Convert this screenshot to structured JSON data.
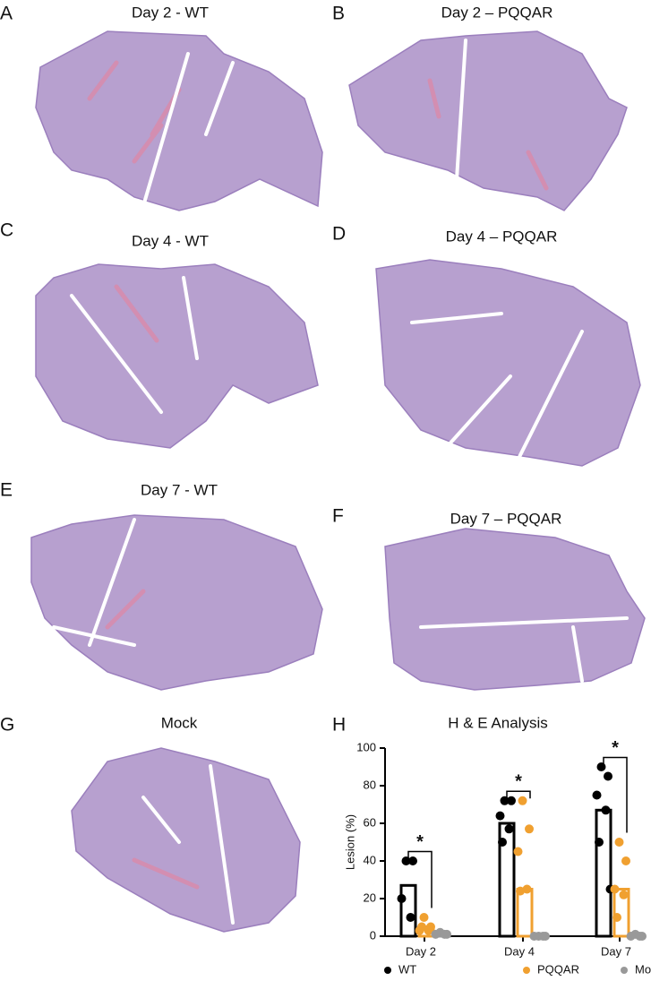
{
  "panels": [
    {
      "letter": "A",
      "title": "Day 2 - WT"
    },
    {
      "letter": "B",
      "title": "Day 2 – PQQAR"
    },
    {
      "letter": "C",
      "title": "Day 4 - WT"
    },
    {
      "letter": "D",
      "title": "Day 4 – PQQAR"
    },
    {
      "letter": "E",
      "title": "Day 7 - WT"
    },
    {
      "letter": "F",
      "title": "Day 7 – PQQAR"
    },
    {
      "letter": "G",
      "title": "Mock"
    },
    {
      "letter": "H"
    }
  ],
  "chart_data": {
    "type": "bar",
    "title": "H & E Analysis",
    "y_label": "Lesion (%)",
    "categories": [
      "Day 2",
      "Day 4",
      "Day 7"
    ],
    "series": [
      {
        "name": "WT",
        "color": "#000000",
        "values": [
          27,
          60,
          67
        ],
        "points": [
          [
            40,
            40,
            20,
            10
          ],
          [
            72,
            72,
            64,
            57,
            50
          ],
          [
            90,
            85,
            75,
            67,
            50,
            25
          ]
        ]
      },
      {
        "name": "PQQAR",
        "color": "#f0a030",
        "values": [
          5,
          25,
          25
        ],
        "points": [
          [
            10,
            5,
            3,
            3,
            5
          ],
          [
            72,
            57,
            45,
            25,
            24
          ],
          [
            50,
            40,
            25,
            22,
            10
          ]
        ]
      },
      {
        "name": "Mock",
        "color": "#999999",
        "values": [
          1,
          0,
          0
        ],
        "points": [
          [
            2,
            1,
            1,
            1
          ],
          [
            0,
            0,
            0,
            0
          ],
          [
            1,
            0,
            0,
            0
          ]
        ]
      }
    ],
    "annotations": [
      "*",
      "*",
      "*"
    ],
    "ylim": [
      0,
      100
    ],
    "yticks": [
      0,
      20,
      40,
      60,
      80,
      100
    ]
  }
}
